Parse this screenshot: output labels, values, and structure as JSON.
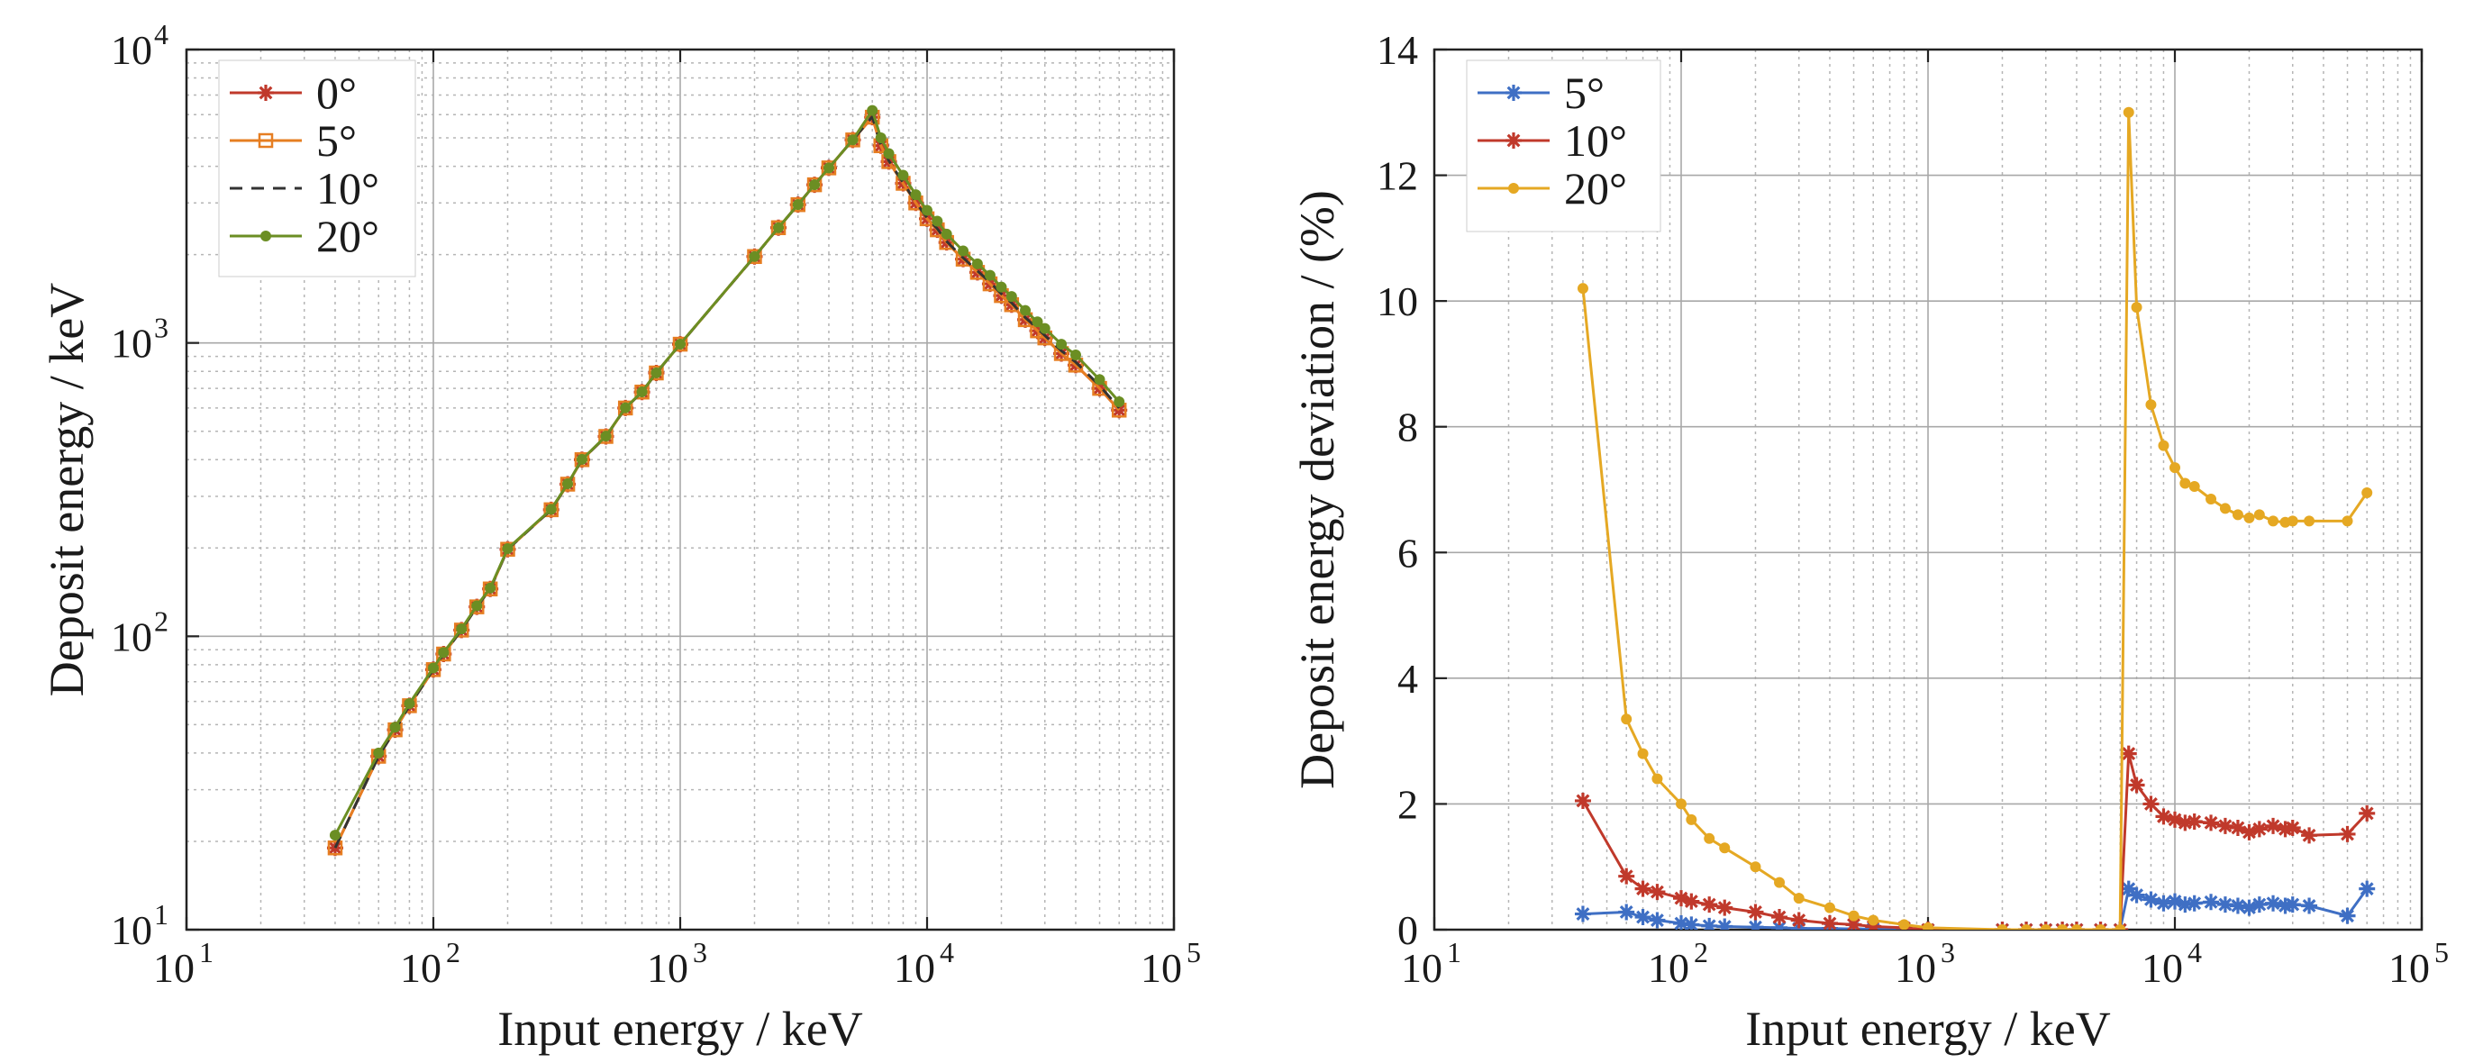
{
  "chart_data": [
    {
      "type": "line",
      "xlabel": "Input energy / keV",
      "ylabel": "Deposit energy / keV",
      "xscale": "log",
      "yscale": "log",
      "xlim": [
        10,
        100000
      ],
      "ylim": [
        10,
        10000
      ],
      "xticks": [
        {
          "base": "10",
          "exp": "1"
        },
        {
          "base": "10",
          "exp": "2"
        },
        {
          "base": "10",
          "exp": "3"
        },
        {
          "base": "10",
          "exp": "4"
        },
        {
          "base": "10",
          "exp": "5"
        }
      ],
      "yticks": [
        {
          "base": "10",
          "exp": "1"
        },
        {
          "base": "10",
          "exp": "2"
        },
        {
          "base": "10",
          "exp": "3"
        },
        {
          "base": "10",
          "exp": "4"
        }
      ],
      "grid": true,
      "minor_grid": true,
      "legend_position": "top-left",
      "series": [
        {
          "name": "0°",
          "color": "#c0392b",
          "marker": "star",
          "dash": "",
          "x": [
            40,
            60,
            70,
            80,
            100,
            110,
            130,
            150,
            170,
            200,
            300,
            350,
            400,
            500,
            600,
            700,
            800,
            1000,
            2000,
            2500,
            3000,
            3500,
            4000,
            5000,
            6000,
            6500,
            7000,
            8000,
            9000,
            10000,
            11000,
            12000,
            14000,
            16000,
            18000,
            20000,
            22000,
            25000,
            28000,
            30000,
            35000,
            40000,
            50000,
            60000
          ],
          "y": [
            19,
            39,
            48,
            58,
            77,
            87,
            105,
            126,
            145,
            198,
            270,
            330,
            400,
            480,
            600,
            680,
            790,
            990,
            1970,
            2470,
            2960,
            3460,
            3950,
            4920,
            5880,
            4700,
            4150,
            3500,
            3000,
            2650,
            2430,
            2200,
            1930,
            1740,
            1590,
            1450,
            1350,
            1200,
            1100,
            1040,
            920,
            840,
            700,
            590
          ]
        },
        {
          "name": "5°",
          "color": "#e67e22",
          "marker": "square",
          "dash": "",
          "x": [
            40,
            60,
            70,
            80,
            100,
            110,
            130,
            150,
            170,
            200,
            300,
            350,
            400,
            500,
            600,
            700,
            800,
            1000,
            2000,
            2500,
            3000,
            3500,
            4000,
            5000,
            6000,
            6500,
            7000,
            8000,
            9000,
            10000,
            11000,
            12000,
            14000,
            16000,
            18000,
            20000,
            22000,
            25000,
            28000,
            30000,
            35000,
            40000,
            50000,
            60000
          ],
          "y": [
            19,
            39,
            48,
            58,
            77,
            87,
            105,
            126,
            145,
            198,
            270,
            330,
            400,
            480,
            600,
            680,
            790,
            990,
            1970,
            2470,
            2960,
            3460,
            3950,
            4920,
            5880,
            4700,
            4150,
            3500,
            3000,
            2650,
            2430,
            2200,
            1930,
            1740,
            1590,
            1450,
            1350,
            1200,
            1100,
            1040,
            920,
            840,
            700,
            590
          ]
        },
        {
          "name": "10°",
          "color": "#333333",
          "marker": "none",
          "dash": "14,10",
          "x": [
            40,
            60,
            70,
            80,
            100,
            110,
            130,
            150,
            170,
            200,
            300,
            350,
            400,
            500,
            600,
            700,
            800,
            1000,
            2000,
            2500,
            3000,
            3500,
            4000,
            5000,
            6000,
            6500,
            7000,
            8000,
            9000,
            10000,
            11000,
            12000,
            14000,
            16000,
            18000,
            20000,
            22000,
            25000,
            28000,
            30000,
            35000,
            40000,
            50000,
            60000
          ],
          "y": [
            19,
            39,
            48,
            58,
            77,
            87,
            105,
            126,
            145,
            198,
            270,
            330,
            400,
            480,
            600,
            680,
            790,
            990,
            1970,
            2470,
            2960,
            3460,
            3950,
            4920,
            5900,
            4720,
            4170,
            3520,
            3020,
            2670,
            2450,
            2220,
            1950,
            1760,
            1610,
            1470,
            1370,
            1220,
            1120,
            1060,
            940,
            860,
            715,
            600
          ]
        },
        {
          "name": "20°",
          "color": "#6b8e23",
          "marker": "dot",
          "dash": "",
          "x": [
            40,
            60,
            70,
            80,
            100,
            110,
            130,
            150,
            170,
            200,
            300,
            350,
            400,
            500,
            600,
            700,
            800,
            1000,
            2000,
            2500,
            3000,
            3500,
            4000,
            5000,
            6000,
            6500,
            7000,
            8000,
            9000,
            10000,
            11000,
            12000,
            14000,
            16000,
            18000,
            20000,
            22000,
            25000,
            28000,
            30000,
            35000,
            40000,
            50000,
            60000
          ],
          "y": [
            21,
            40,
            49,
            59,
            78,
            88,
            106,
            127,
            146,
            199,
            271,
            331,
            401,
            481,
            601,
            681,
            791,
            991,
            1971,
            2471,
            2961,
            3461,
            3951,
            4921,
            6200,
            5000,
            4420,
            3730,
            3200,
            2830,
            2600,
            2350,
            2060,
            1860,
            1700,
            1550,
            1440,
            1290,
            1180,
            1120,
            990,
            910,
            750,
            630
          ]
        }
      ]
    },
    {
      "type": "line",
      "xlabel": "Input energy / keV",
      "ylabel": "Deposit energy deviation / (%)",
      "xscale": "log",
      "yscale": "linear",
      "xlim": [
        10,
        100000
      ],
      "ylim": [
        0,
        14
      ],
      "xticks": [
        {
          "base": "10",
          "exp": "1"
        },
        {
          "base": "10",
          "exp": "2"
        },
        {
          "base": "10",
          "exp": "3"
        },
        {
          "base": "10",
          "exp": "4"
        },
        {
          "base": "10",
          "exp": "5"
        }
      ],
      "yticks": [
        "0",
        "2",
        "4",
        "6",
        "8",
        "10",
        "12",
        "14"
      ],
      "grid": true,
      "minor_grid": true,
      "legend_position": "top-left",
      "series": [
        {
          "name": "5°",
          "color": "#3f6fc4",
          "marker": "star",
          "dash": "",
          "x": [
            40,
            60,
            70,
            80,
            100,
            110,
            130,
            150,
            200,
            250,
            300,
            400,
            500,
            600,
            800,
            1000,
            2000,
            2500,
            3000,
            3500,
            4000,
            5000,
            6000,
            6500,
            7000,
            8000,
            9000,
            10000,
            11000,
            12000,
            14000,
            16000,
            18000,
            20000,
            22000,
            25000,
            28000,
            30000,
            35000,
            50000,
            60000
          ],
          "y": [
            0.25,
            0.28,
            0.2,
            0.15,
            0.1,
            0.08,
            0.06,
            0.05,
            0.04,
            0.03,
            0.02,
            0.02,
            0.01,
            0.01,
            0.01,
            0.0,
            0.0,
            0.0,
            0.0,
            0.0,
            0.0,
            0.0,
            0.0,
            0.65,
            0.55,
            0.48,
            0.42,
            0.45,
            0.4,
            0.42,
            0.44,
            0.4,
            0.38,
            0.35,
            0.4,
            0.42,
            0.38,
            0.4,
            0.38,
            0.22,
            0.65
          ]
        },
        {
          "name": "10°",
          "color": "#c0392b",
          "marker": "star",
          "dash": "",
          "x": [
            40,
            60,
            70,
            80,
            100,
            110,
            130,
            150,
            200,
            250,
            300,
            400,
            500,
            600,
            800,
            1000,
            2000,
            2500,
            3000,
            3500,
            4000,
            5000,
            6000,
            6500,
            7000,
            8000,
            9000,
            10000,
            11000,
            12000,
            14000,
            16000,
            18000,
            20000,
            22000,
            25000,
            28000,
            30000,
            35000,
            50000,
            60000
          ],
          "y": [
            2.05,
            0.85,
            0.65,
            0.6,
            0.5,
            0.45,
            0.4,
            0.35,
            0.28,
            0.2,
            0.15,
            0.1,
            0.08,
            0.05,
            0.03,
            0.0,
            0.0,
            0.0,
            0.0,
            0.0,
            0.0,
            0.0,
            0.0,
            2.8,
            2.3,
            2.0,
            1.8,
            1.75,
            1.7,
            1.72,
            1.7,
            1.65,
            1.62,
            1.55,
            1.6,
            1.65,
            1.6,
            1.62,
            1.5,
            1.52,
            1.85
          ]
        },
        {
          "name": "20°",
          "color": "#e5a823",
          "marker": "dot",
          "dash": "",
          "x": [
            40,
            60,
            70,
            80,
            100,
            110,
            130,
            150,
            200,
            250,
            300,
            400,
            500,
            600,
            800,
            1000,
            2000,
            2500,
            3000,
            3500,
            4000,
            5000,
            6000,
            6500,
            7000,
            8000,
            9000,
            10000,
            11000,
            12000,
            14000,
            16000,
            18000,
            20000,
            22000,
            25000,
            28000,
            30000,
            35000,
            50000,
            60000
          ],
          "y": [
            10.2,
            3.35,
            2.8,
            2.4,
            2.0,
            1.75,
            1.45,
            1.3,
            1.0,
            0.75,
            0.5,
            0.35,
            0.22,
            0.15,
            0.08,
            0.03,
            0.0,
            0.0,
            0.0,
            0.0,
            0.0,
            0.0,
            0.0,
            13.0,
            9.9,
            8.35,
            7.7,
            7.35,
            7.1,
            7.05,
            6.85,
            6.7,
            6.6,
            6.55,
            6.6,
            6.5,
            6.48,
            6.5,
            6.5,
            6.5,
            6.95
          ]
        }
      ]
    }
  ]
}
